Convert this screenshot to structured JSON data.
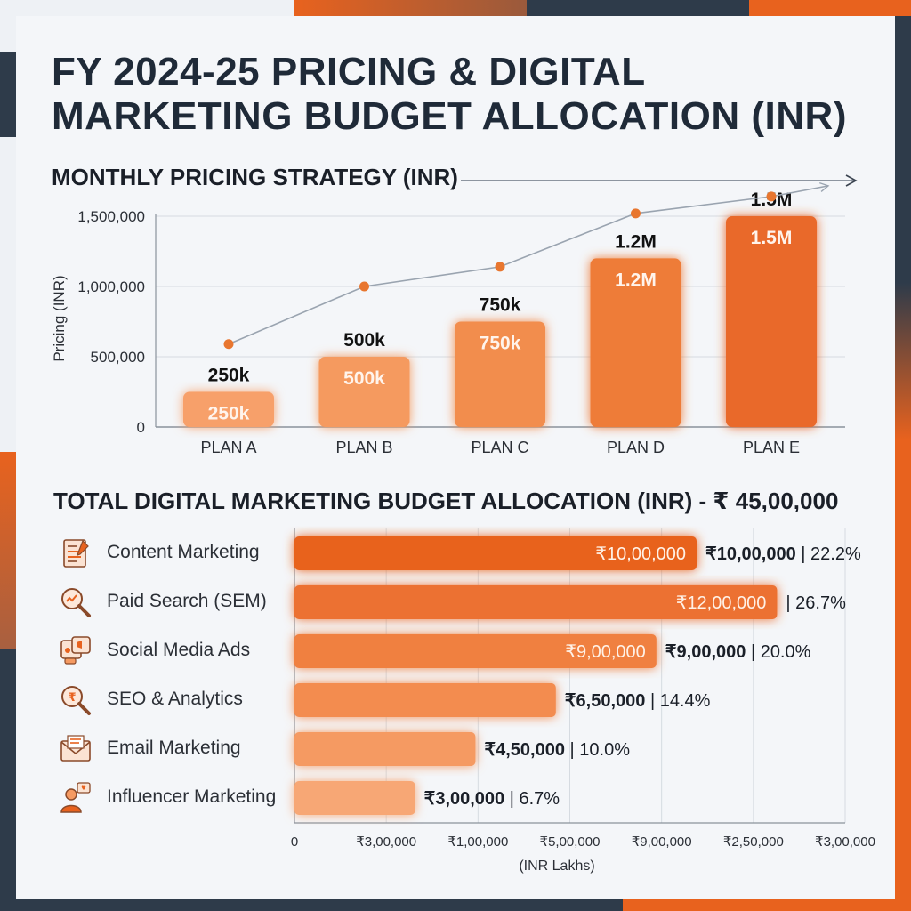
{
  "title": "FY 2024-25 PRICING & DIGITAL MARKETING BUDGET ALLOCATION (INR)",
  "colors": {
    "orange_dark": "#e8621e",
    "orange_mid": "#f07a3a",
    "orange_light": "#f7a46d",
    "navy": "#2e3b4a",
    "line": "#9aa4b0",
    "grid": "#d6dbe1"
  },
  "chart_data": [
    {
      "type": "bar",
      "title": "MONTHLY PRICING STRATEGY (INR)",
      "ylabel": "Pricing (INR)",
      "xlabel": "",
      "categories": [
        "PLAN A",
        "PLAN B",
        "PLAN C",
        "PLAN D",
        "PLAN E"
      ],
      "values": [
        250000,
        500000,
        750000,
        1200000,
        1500000
      ],
      "bar_labels": [
        "250k",
        "500k",
        "750k",
        "1.2M",
        "1.5M"
      ],
      "line_values": [
        590000,
        1000000,
        1140000,
        1520000,
        1640000
      ],
      "ylim": [
        0,
        1500000
      ],
      "yticks": [
        0,
        500000,
        1000000,
        1500000
      ],
      "ytick_labels": [
        "0",
        "500,000",
        "1,000,000",
        "1,500,000"
      ],
      "grid": true
    },
    {
      "type": "bar",
      "orientation": "horizontal",
      "title": "TOTAL DIGITAL MARKETING BUDGET ALLOCATION (INR) - ₹ 45,00,000",
      "xlabel": "(INR Lakhs)",
      "categories": [
        "Content Marketing",
        "Paid Search (SEM)",
        "Social Media Ads",
        "SEO & Analytics",
        "Email Marketing",
        "Influencer Marketing"
      ],
      "icons": [
        "content-document-icon",
        "search-analytics-icon",
        "social-media-icon",
        "rupee-search-icon",
        "email-envelope-icon",
        "influencer-person-icon"
      ],
      "values": [
        1000000,
        1200000,
        900000,
        650000,
        450000,
        300000
      ],
      "inner_labels": [
        "₹10,00,000",
        "₹12,00,000",
        "₹9,00,000",
        "",
        "",
        ""
      ],
      "outer_amounts": [
        "₹10,00,000",
        "",
        "₹9,00,000",
        "₹6,50,000",
        "₹4,50,000",
        "₹3,00,000"
      ],
      "outer_percents": [
        "22.2%",
        "26.7%",
        "20.0%",
        "14.4%",
        "10.0%",
        "6.7%"
      ],
      "xtick_labels": [
        "0",
        "₹3,00,000",
        "₹1,00,000",
        "₹5,00,000",
        "₹9,00,000",
        "₹2,50,000",
        "₹3,00,000"
      ],
      "xlim": [
        0,
        1800000
      ],
      "grid": true
    }
  ]
}
